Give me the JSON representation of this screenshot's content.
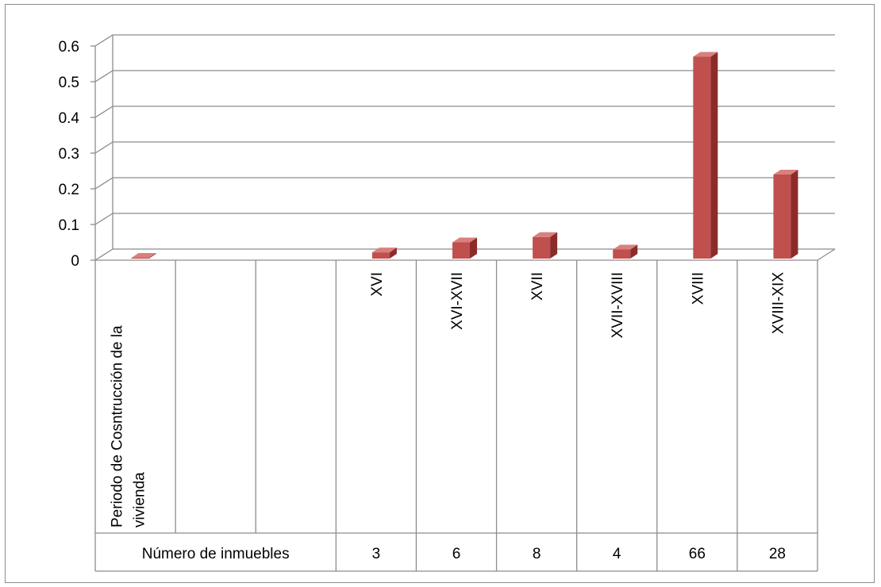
{
  "chart_data": {
    "type": "bar",
    "categories": [
      "Periodo de Cosntrucción de la\nvivienda",
      "",
      "",
      "XVI",
      "XVI-XVII",
      "XVII",
      "XVII-XVIII",
      "XVIII",
      "XVIII-XIX"
    ],
    "values": [
      0,
      null,
      null,
      0.022,
      0.05,
      0.065,
      0.03,
      0.57,
      0.24
    ],
    "ylim": [
      0,
      0.6
    ],
    "yticks": [
      "0",
      "0.1",
      "0.2",
      "0.3",
      "0.4",
      "0.5",
      "0.6"
    ],
    "grid": true,
    "colors": {
      "bar_front": "#c0504d",
      "bar_side": "#8b2c2a",
      "bar_top": "#d9807e",
      "grid": "#8c8c8c"
    },
    "table": {
      "row_label": "Número de inmuebles",
      "values": [
        "3",
        "6",
        "8",
        "4",
        "66",
        "28"
      ]
    }
  }
}
